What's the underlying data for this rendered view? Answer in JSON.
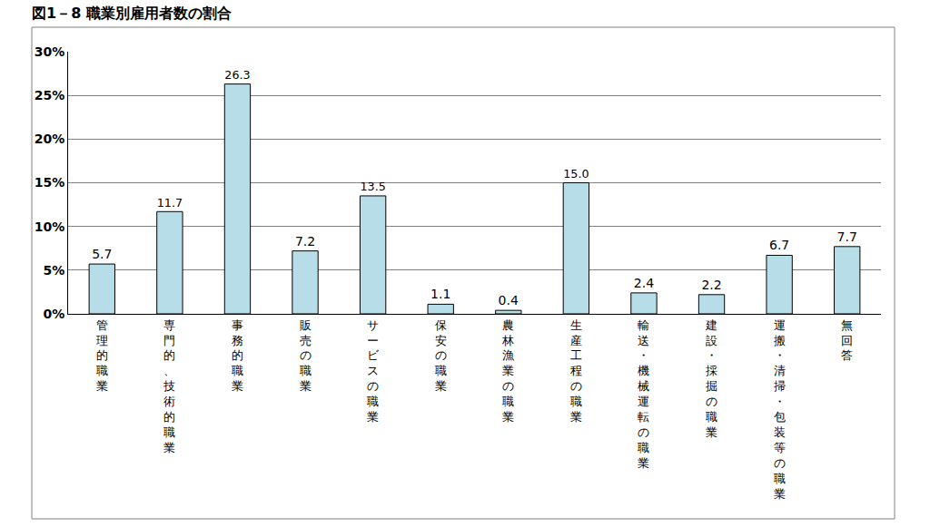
{
  "chart_data": {
    "type": "bar",
    "title": "図1－8 職業別雇用者数の割合",
    "categories": [
      "管理的職業",
      "専門的、技術的職業",
      "事務的職業",
      "販売の職業",
      "サービスの職業",
      "保安の職業",
      "農林漁業の職業",
      "生産工程の職業",
      "輸送・機械運転の職業",
      "建設・採掘の職業",
      "運搬・清掃・包装等の職業",
      "無回答"
    ],
    "values": [
      5.7,
      11.7,
      26.3,
      7.2,
      13.5,
      1.1,
      0.4,
      15.0,
      2.4,
      2.2,
      6.7,
      7.7
    ],
    "value_labels": [
      "5.7",
      "11.7",
      "26.3",
      "7.2",
      "13.5",
      "1.1",
      "0.4",
      "15.0",
      "2.4",
      "2.2",
      "6.7",
      "7.7"
    ],
    "color": "#b7dee8",
    "ylim": [
      0,
      30
    ],
    "yticks": [
      {
        "value": 0,
        "label": "0%"
      },
      {
        "value": 5,
        "label": "5%"
      },
      {
        "value": 10,
        "label": "10%"
      },
      {
        "value": 15,
        "label": "15%"
      },
      {
        "value": 20,
        "label": "20%"
      },
      {
        "value": 25,
        "label": "25%"
      },
      {
        "value": 30,
        "label": "30%"
      }
    ],
    "grid": true,
    "data_labels": true
  }
}
